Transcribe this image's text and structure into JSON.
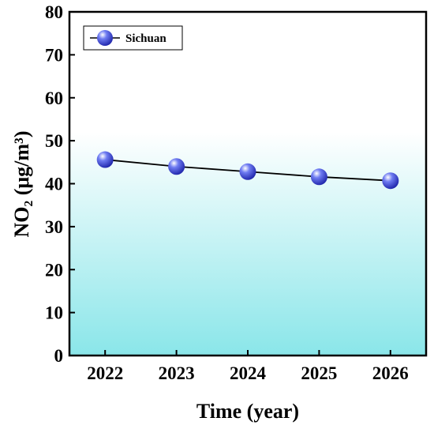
{
  "chart_data": {
    "type": "line",
    "x": [
      2022,
      2023,
      2024,
      2025,
      2026
    ],
    "categories": [
      "2022",
      "2023",
      "2024",
      "2025",
      "2026"
    ],
    "series": [
      {
        "name": "Sichuan",
        "values": [
          45.6,
          44.0,
          42.8,
          41.6,
          40.7
        ]
      }
    ],
    "xlabel": "Time (year)",
    "ylabel": "NO₂ (μg/m³)",
    "ylim": [
      0,
      80
    ],
    "yticks": [
      0,
      10,
      20,
      30,
      40,
      50,
      60,
      70,
      80
    ],
    "legend_position": "top-left",
    "grid": false,
    "colors": {
      "background_top": "#ffffff",
      "background_bottom": "#8ae6e9",
      "marker_fill": "#6f7cf2",
      "line": "#000000"
    }
  }
}
